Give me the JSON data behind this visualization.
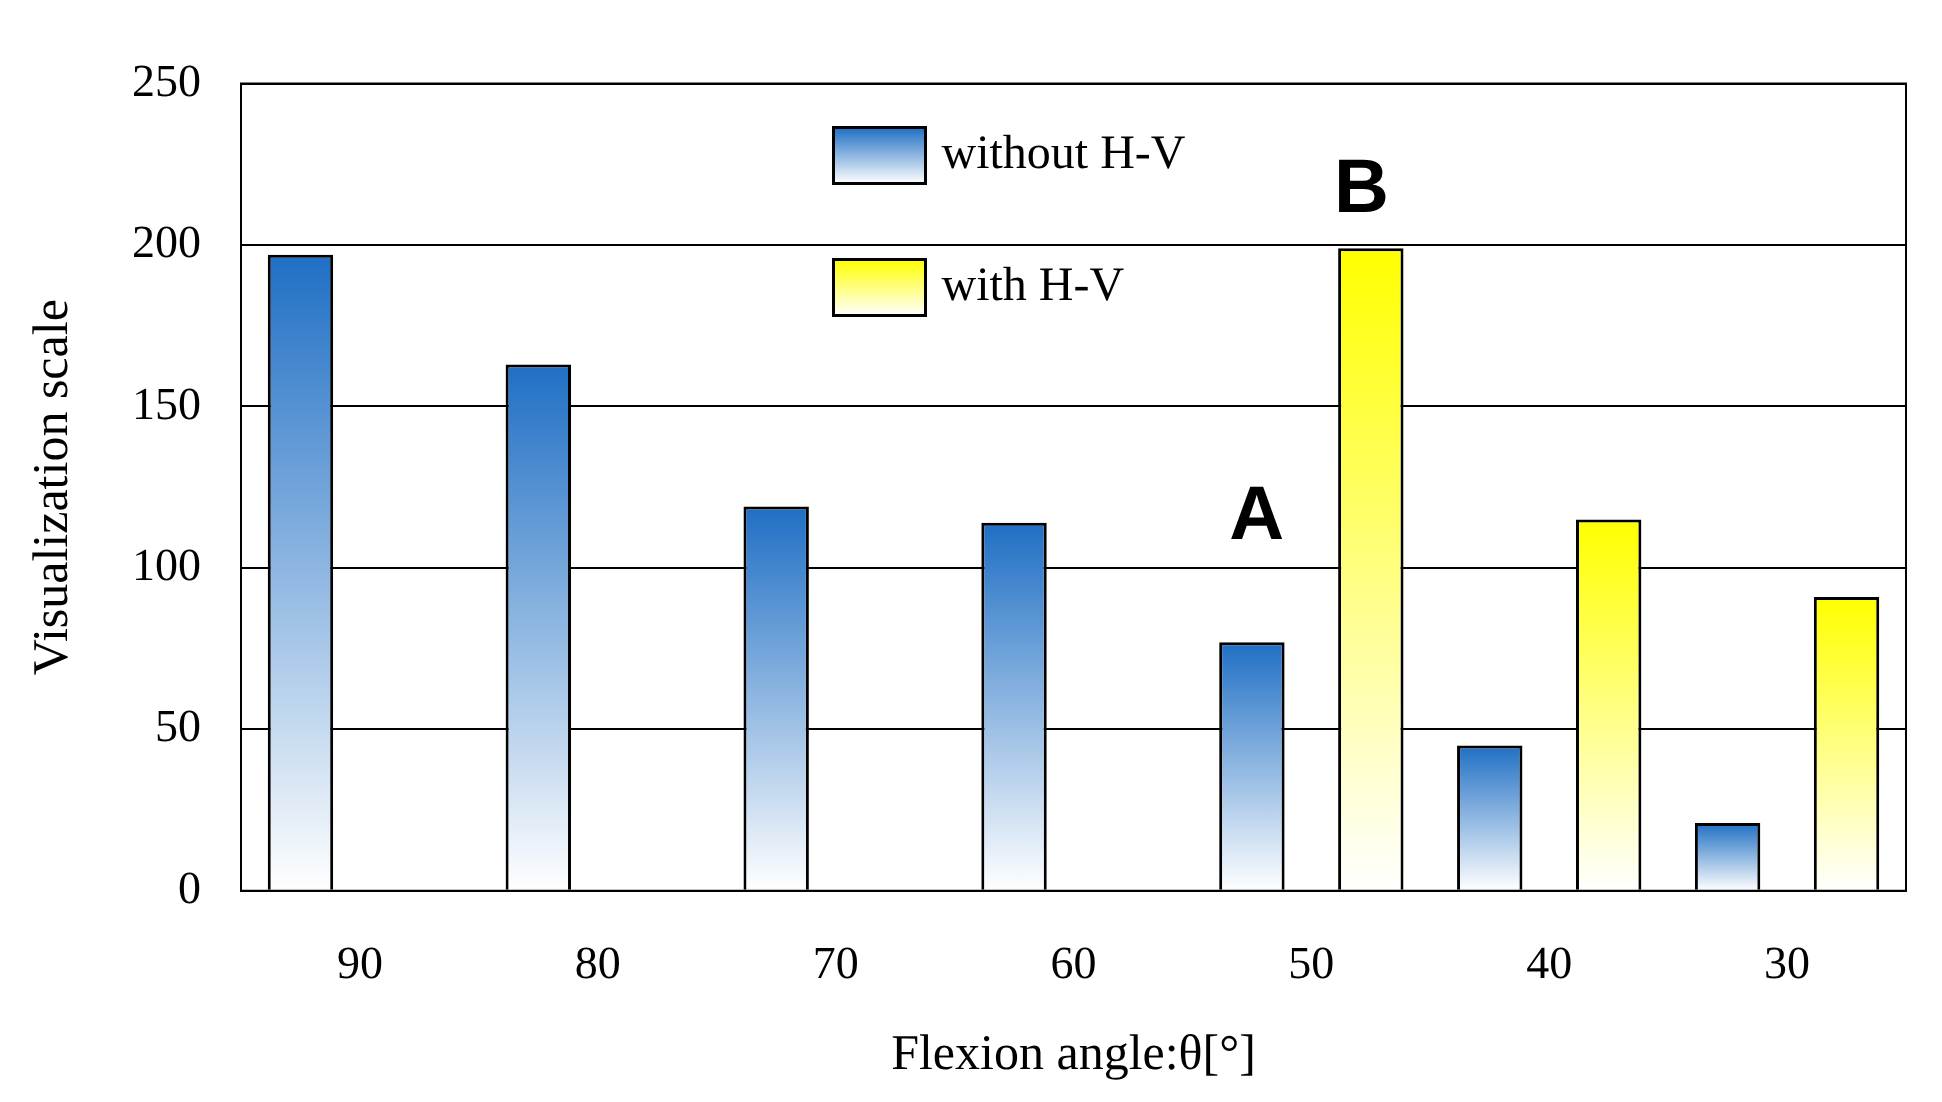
{
  "chart_data": {
    "type": "bar",
    "xlabel": "Flexion angle:θ[°]",
    "ylabel": "Visualization scale",
    "categories": [
      "90",
      "80",
      "70",
      "60",
      "50",
      "40",
      "30"
    ],
    "series": [
      {
        "name": "without H-V",
        "color": "#1f6fc4",
        "values": [
          197,
          163,
          119,
          114,
          77,
          45,
          21
        ]
      },
      {
        "name": "with H-V",
        "color": "#ffff00",
        "values": [
          null,
          null,
          null,
          null,
          199,
          115,
          91
        ]
      }
    ],
    "ylim": [
      0,
      250
    ],
    "yticks": [
      0,
      50,
      100,
      150,
      200,
      250
    ],
    "grid": "y",
    "legend": "top",
    "annotations": [
      "A",
      "B"
    ]
  }
}
